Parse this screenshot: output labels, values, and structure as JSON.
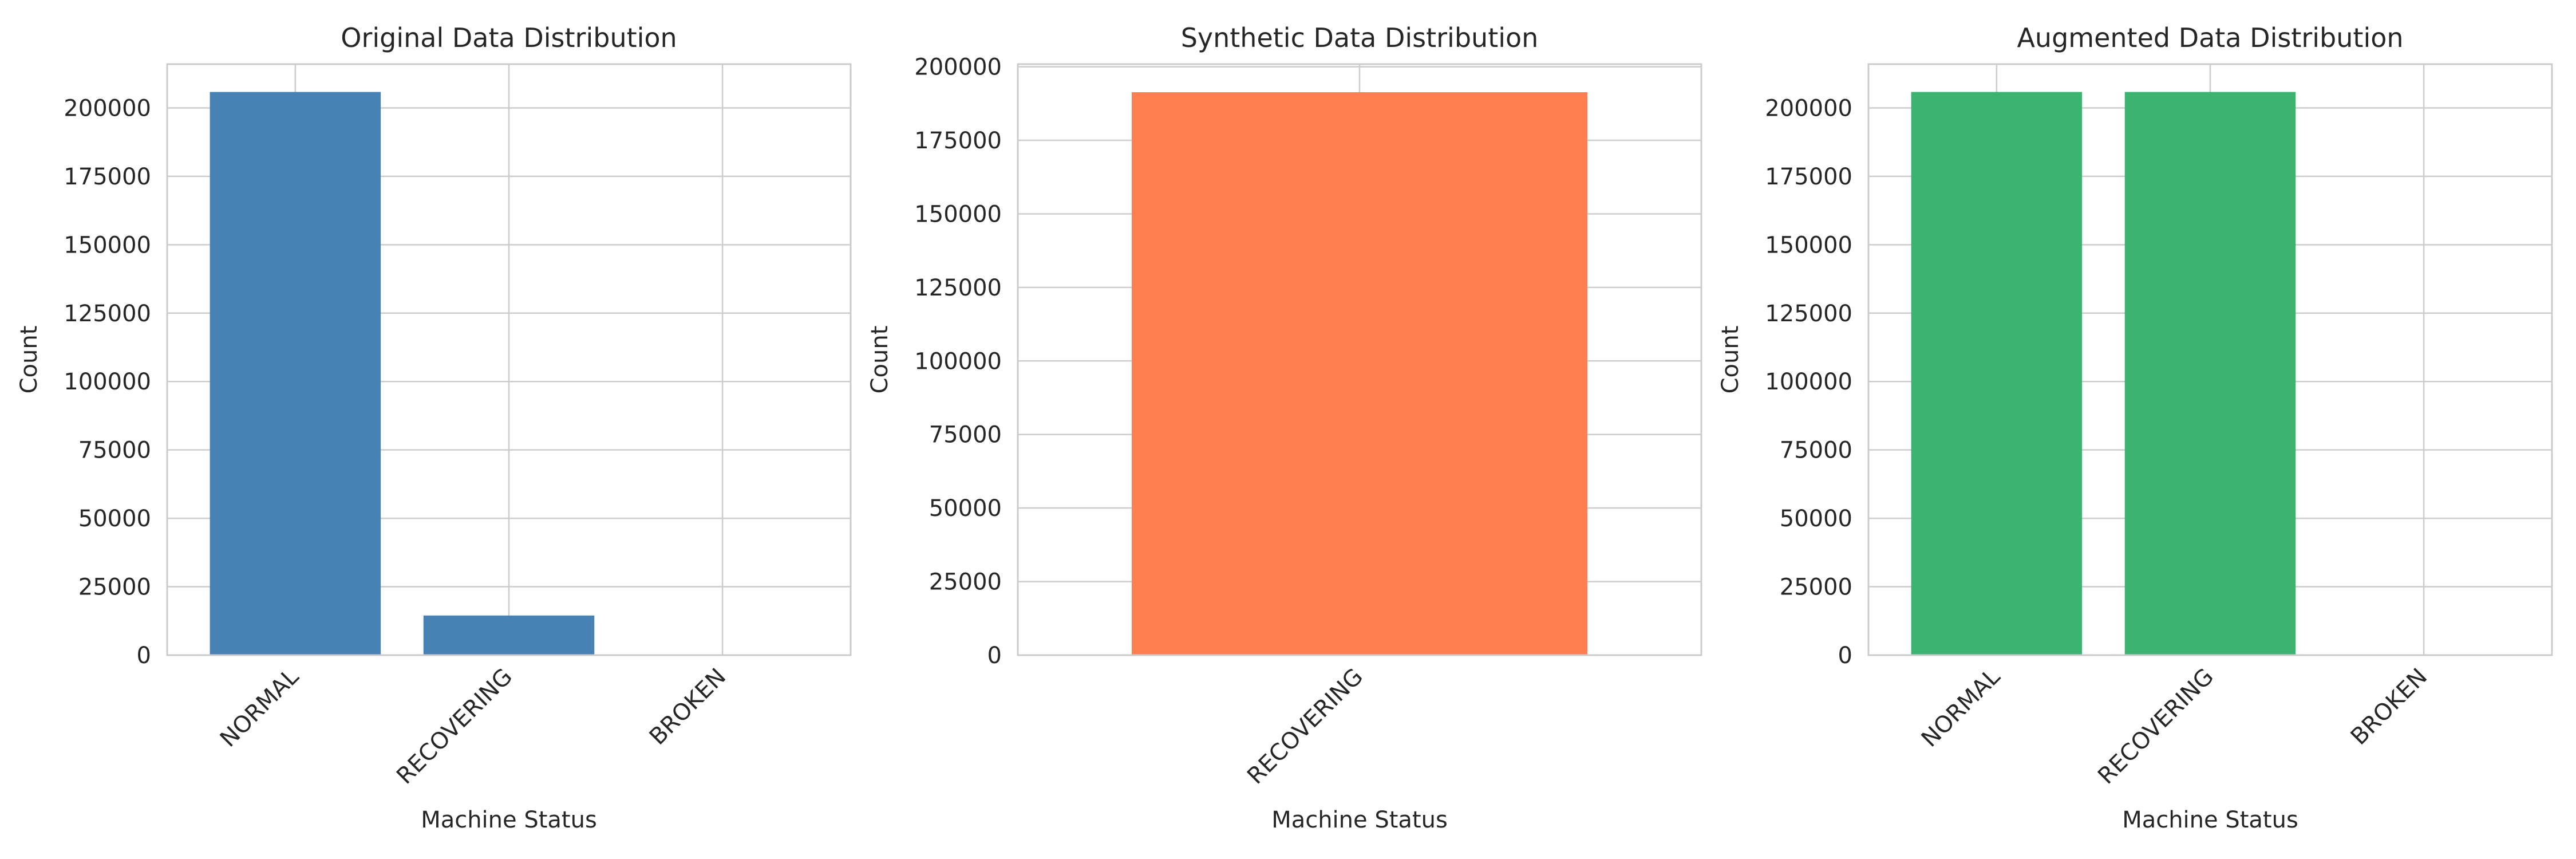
{
  "figure": {
    "panel_count": 3
  },
  "chart_data": [
    {
      "type": "bar",
      "title": "Original Data Distribution",
      "xlabel": "Machine Status",
      "ylabel": "Count",
      "categories": [
        "NORMAL",
        "RECOVERING",
        "BROKEN"
      ],
      "values": [
        205836,
        14477,
        7
      ],
      "ylim": [
        0,
        216000
      ],
      "yticks": [
        0,
        25000,
        50000,
        75000,
        100000,
        125000,
        150000,
        175000,
        200000
      ],
      "grid": true,
      "legend": "none",
      "color": "#4682b4"
    },
    {
      "type": "bar",
      "title": "Synthetic Data Distribution",
      "xlabel": "Machine Status",
      "ylabel": "Count",
      "categories": [
        "RECOVERING"
      ],
      "values": [
        191359
      ],
      "ylim": [
        0,
        200900
      ],
      "yticks": [
        0,
        25000,
        50000,
        75000,
        100000,
        125000,
        150000,
        175000,
        200000
      ],
      "grid": true,
      "legend": "none",
      "color": "#ff7f50"
    },
    {
      "type": "bar",
      "title": "Augmented Data Distribution",
      "xlabel": "Machine Status",
      "ylabel": "Count",
      "categories": [
        "NORMAL",
        "RECOVERING",
        "BROKEN"
      ],
      "values": [
        205836,
        205836,
        7
      ],
      "ylim": [
        0,
        216000
      ],
      "yticks": [
        0,
        25000,
        50000,
        75000,
        100000,
        125000,
        150000,
        175000,
        200000
      ],
      "grid": true,
      "legend": "none",
      "color": "#3cb371"
    }
  ]
}
